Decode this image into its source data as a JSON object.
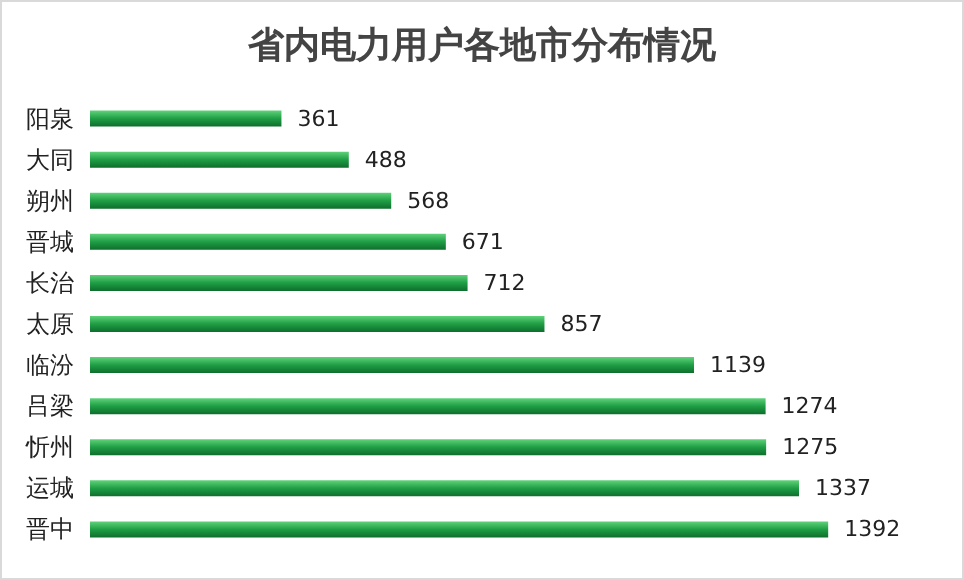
{
  "chart_data": {
    "type": "bar",
    "orientation": "horizontal",
    "title": "省内电力用户各地市分布情况",
    "categories": [
      "阳泉",
      "大同",
      "朔州",
      "晋城",
      "长治",
      "太原",
      "临汾",
      "吕梁",
      "忻州",
      "运城",
      "晋中"
    ],
    "values": [
      361,
      488,
      568,
      671,
      712,
      857,
      1139,
      1274,
      1275,
      1337,
      1392
    ],
    "color": "#1f9e45",
    "data_labels": true
  }
}
